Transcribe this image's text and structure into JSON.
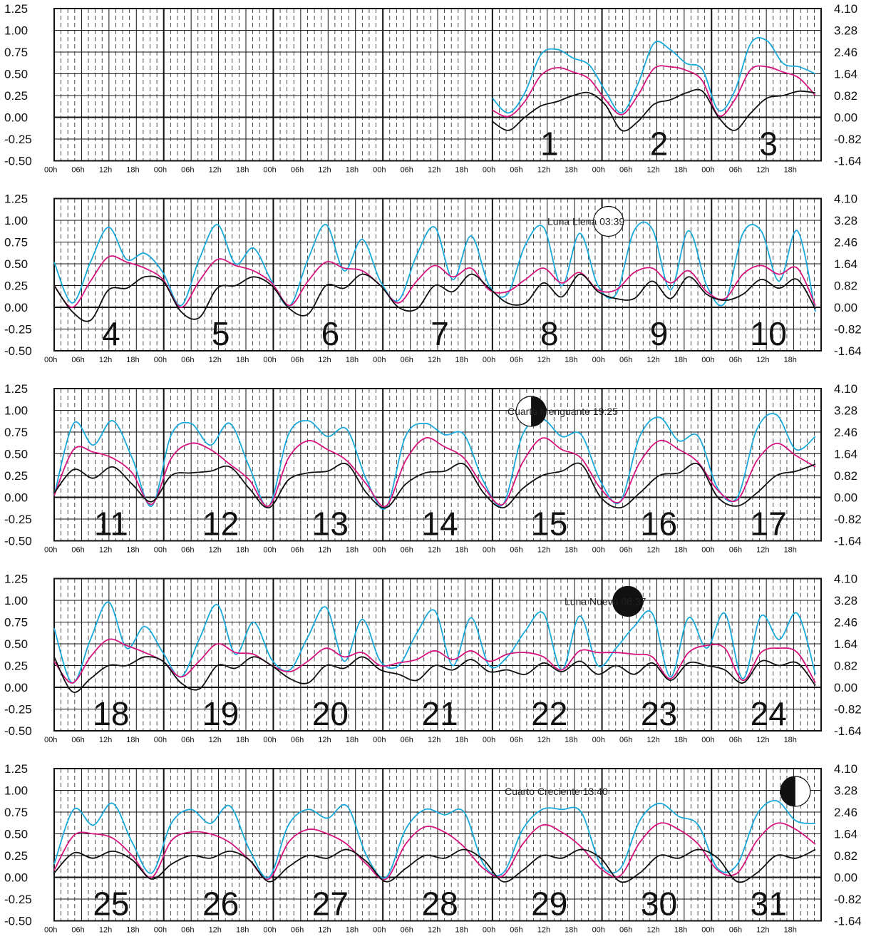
{
  "chart_data": {
    "type": "line",
    "y_left": {
      "ticks": [
        "1.25",
        "1.00",
        "0.75",
        "0.50",
        "0.25",
        "0.00",
        "-0.25",
        "-0.50"
      ],
      "range": [
        -0.5,
        1.25
      ]
    },
    "y_right": {
      "ticks": [
        "4.10",
        "3.28",
        "2.46",
        "1.64",
        "0.82",
        "0.00",
        "-0.82",
        "-1.64"
      ]
    },
    "hour_labels": [
      "00h",
      "06h",
      "12h",
      "18h"
    ],
    "colors": {
      "cyan": "#1aa9dc",
      "magenta": "#d6157f",
      "black": "#111111"
    },
    "series_keys": [
      "cyan",
      "magenta",
      "black"
    ],
    "panels": [
      {
        "days": [
          "",
          "",
          "",
          "",
          "",
          "",
          "",
          "1",
          "2",
          "3"
        ],
        "start_col": 4,
        "series": {
          "cyan": [
            0.22,
            0.05,
            0.28,
            0.72,
            0.78,
            0.68,
            0.6,
            0.3,
            0.05,
            0.38,
            0.85,
            0.78,
            0.62,
            0.55,
            0.08,
            0.3,
            0.85,
            0.88,
            0.62,
            0.58,
            0.5
          ],
          "magenta": [
            0.08,
            0.01,
            0.18,
            0.48,
            0.57,
            0.52,
            0.44,
            0.2,
            0.03,
            0.25,
            0.56,
            0.58,
            0.54,
            0.42,
            0.02,
            0.2,
            0.55,
            0.58,
            0.52,
            0.45,
            0.25
          ],
          "black": [
            -0.05,
            -0.15,
            0.0,
            0.13,
            0.18,
            0.25,
            0.28,
            0.14,
            -0.15,
            -0.05,
            0.15,
            0.2,
            0.28,
            0.3,
            0.0,
            -0.15,
            0.05,
            0.22,
            0.25,
            0.3,
            0.28
          ]
        }
      },
      {
        "days": [
          "4",
          "5",
          "6",
          "7",
          "8",
          "9",
          "10"
        ],
        "start_col": 0,
        "series": {
          "cyan": [
            0.52,
            0.05,
            0.52,
            0.92,
            0.55,
            0.62,
            0.4,
            0.02,
            0.55,
            0.95,
            0.5,
            0.68,
            0.3,
            0.02,
            0.55,
            0.95,
            0.42,
            0.78,
            0.3,
            0.08,
            0.6,
            0.92,
            0.32,
            0.82,
            0.25,
            0.15,
            0.72,
            0.92,
            0.25,
            0.85,
            0.25,
            0.15,
            0.88,
            0.9,
            0.2,
            0.88,
            0.25,
            0.05,
            0.85,
            0.88,
            0.3,
            0.88,
            -0.05
          ],
          "magenta": [
            0.25,
            0.0,
            0.3,
            0.58,
            0.52,
            0.45,
            0.32,
            0.0,
            0.3,
            0.55,
            0.48,
            0.42,
            0.28,
            0.02,
            0.3,
            0.52,
            0.45,
            0.42,
            0.25,
            0.05,
            0.3,
            0.48,
            0.35,
            0.45,
            0.2,
            0.18,
            0.32,
            0.45,
            0.28,
            0.4,
            0.2,
            0.2,
            0.4,
            0.45,
            0.28,
            0.42,
            0.18,
            0.1,
            0.38,
            0.48,
            0.38,
            0.45,
            0.02
          ],
          "black": [
            0.25,
            -0.05,
            -0.15,
            0.2,
            0.22,
            0.35,
            0.3,
            -0.05,
            -0.12,
            0.22,
            0.25,
            0.35,
            0.25,
            -0.02,
            -0.08,
            0.25,
            0.22,
            0.38,
            0.25,
            0.0,
            -0.02,
            0.25,
            0.18,
            0.38,
            0.22,
            0.05,
            0.05,
            0.28,
            0.12,
            0.38,
            0.18,
            0.1,
            0.1,
            0.3,
            0.1,
            0.35,
            0.15,
            0.08,
            0.15,
            0.32,
            0.22,
            0.32,
            -0.02
          ]
        }
      },
      {
        "days": [
          "11",
          "12",
          "13",
          "14",
          "15",
          "16",
          "17"
        ],
        "start_col": 0,
        "series": {
          "cyan": [
            0.02,
            0.85,
            0.6,
            0.88,
            0.45,
            -0.1,
            0.72,
            0.85,
            0.6,
            0.85,
            0.35,
            -0.1,
            0.72,
            0.88,
            0.7,
            0.78,
            0.2,
            -0.12,
            0.7,
            0.85,
            0.72,
            0.72,
            0.18,
            -0.08,
            0.72,
            0.9,
            0.7,
            0.72,
            0.18,
            -0.05,
            0.7,
            0.92,
            0.65,
            0.7,
            0.1,
            0.0,
            0.78,
            0.95,
            0.55,
            0.7
          ],
          "magenta": [
            0.02,
            0.55,
            0.52,
            0.45,
            0.28,
            -0.08,
            0.45,
            0.62,
            0.55,
            0.38,
            0.2,
            -0.1,
            0.45,
            0.65,
            0.55,
            0.42,
            0.15,
            -0.1,
            0.42,
            0.68,
            0.58,
            0.45,
            0.12,
            -0.08,
            0.4,
            0.68,
            0.55,
            0.45,
            0.1,
            -0.05,
            0.4,
            0.65,
            0.55,
            0.4,
            0.08,
            -0.03,
            0.42,
            0.62,
            0.48,
            0.35
          ],
          "black": [
            0.05,
            0.32,
            0.22,
            0.35,
            0.15,
            -0.05,
            0.25,
            0.28,
            0.3,
            0.35,
            0.1,
            -0.12,
            0.2,
            0.28,
            0.3,
            0.38,
            0.05,
            -0.12,
            0.15,
            0.28,
            0.3,
            0.38,
            0.05,
            -0.12,
            0.1,
            0.25,
            0.3,
            0.38,
            0.0,
            -0.12,
            0.05,
            0.25,
            0.28,
            0.38,
            0.0,
            -0.1,
            0.05,
            0.25,
            0.3,
            0.38
          ]
        }
      },
      {
        "days": [
          "18",
          "19",
          "20",
          "21",
          "22",
          "23",
          "24"
        ],
        "start_col": 0,
        "series": {
          "cyan": [
            0.68,
            0.05,
            0.55,
            0.98,
            0.45,
            0.7,
            0.4,
            0.12,
            0.55,
            0.95,
            0.38,
            0.75,
            0.32,
            0.2,
            0.58,
            0.92,
            0.3,
            0.78,
            0.3,
            0.25,
            0.62,
            0.88,
            0.25,
            0.8,
            0.25,
            0.35,
            0.65,
            0.85,
            0.2,
            0.82,
            0.25,
            0.45,
            0.7,
            0.85,
            0.12,
            0.8,
            0.45,
            0.85,
            0.1,
            0.82,
            0.55,
            0.85,
            0.15
          ],
          "magenta": [
            0.3,
            0.05,
            0.35,
            0.55,
            0.48,
            0.4,
            0.3,
            0.12,
            0.3,
            0.5,
            0.4,
            0.38,
            0.25,
            0.18,
            0.3,
            0.45,
            0.35,
            0.4,
            0.25,
            0.28,
            0.32,
            0.42,
            0.32,
            0.42,
            0.3,
            0.38,
            0.4,
            0.35,
            0.2,
            0.42,
            0.4,
            0.4,
            0.38,
            0.35,
            0.1,
            0.4,
            0.48,
            0.45,
            0.08,
            0.4,
            0.45,
            0.4,
            0.05
          ],
          "black": [
            0.35,
            -0.05,
            0.1,
            0.25,
            0.25,
            0.35,
            0.3,
            0.05,
            -0.02,
            0.25,
            0.22,
            0.35,
            0.25,
            0.1,
            0.05,
            0.25,
            0.22,
            0.35,
            0.2,
            0.15,
            0.08,
            0.25,
            0.2,
            0.32,
            0.18,
            0.2,
            0.15,
            0.28,
            0.18,
            0.3,
            0.15,
            0.25,
            0.15,
            0.28,
            0.08,
            0.28,
            0.25,
            0.2,
            0.05,
            0.3,
            0.25,
            0.28,
            0.02
          ]
        }
      },
      {
        "days": [
          "25",
          "26",
          "27",
          "28",
          "29",
          "30",
          "31"
        ],
        "start_col": 0,
        "series": {
          "cyan": [
            0.15,
            0.78,
            0.6,
            0.85,
            0.4,
            0.05,
            0.62,
            0.78,
            0.62,
            0.82,
            0.32,
            0.0,
            0.6,
            0.78,
            0.68,
            0.82,
            0.25,
            0.0,
            0.55,
            0.78,
            0.72,
            0.75,
            0.15,
            0.05,
            0.55,
            0.78,
            0.78,
            0.75,
            0.15,
            0.1,
            0.65,
            0.85,
            0.7,
            0.6,
            0.1,
            0.15,
            0.72,
            0.88,
            0.65,
            0.62
          ],
          "magenta": [
            0.08,
            0.48,
            0.5,
            0.45,
            0.25,
            0.0,
            0.42,
            0.52,
            0.5,
            0.4,
            0.2,
            -0.02,
            0.4,
            0.55,
            0.5,
            0.38,
            0.15,
            -0.02,
            0.38,
            0.58,
            0.52,
            0.35,
            0.1,
            0.02,
            0.38,
            0.6,
            0.52,
            0.35,
            0.1,
            0.02,
            0.4,
            0.62,
            0.55,
            0.38,
            0.08,
            0.05,
            0.42,
            0.62,
            0.55,
            0.38
          ],
          "black": [
            0.05,
            0.28,
            0.22,
            0.3,
            0.2,
            -0.02,
            0.15,
            0.25,
            0.22,
            0.3,
            0.2,
            -0.05,
            0.12,
            0.25,
            0.22,
            0.32,
            0.18,
            -0.05,
            0.1,
            0.25,
            0.22,
            0.32,
            0.2,
            -0.05,
            0.08,
            0.25,
            0.22,
            0.32,
            0.22,
            -0.05,
            0.05,
            0.25,
            0.22,
            0.32,
            0.22,
            -0.05,
            0.05,
            0.25,
            0.22,
            0.32
          ]
        }
      }
    ]
  },
  "moon_phases": [
    {
      "panel": 1,
      "label": "Luna Llena 03:39",
      "phase": "full",
      "col": 8.6,
      "text_x": 768
    },
    {
      "panel": 2,
      "label": "Cuarto Menguante 19:25",
      "phase": "last-quarter",
      "col": 7.4,
      "text_x": 712
    },
    {
      "panel": 3,
      "label": "Luna Nueva 08:37",
      "phase": "new",
      "col": 8.9,
      "text_x": 792
    },
    {
      "panel": 4,
      "label": "Cuarto Creciente 13:40",
      "phase": "first-quarter",
      "col": 11.5,
      "text_x": 708
    }
  ]
}
